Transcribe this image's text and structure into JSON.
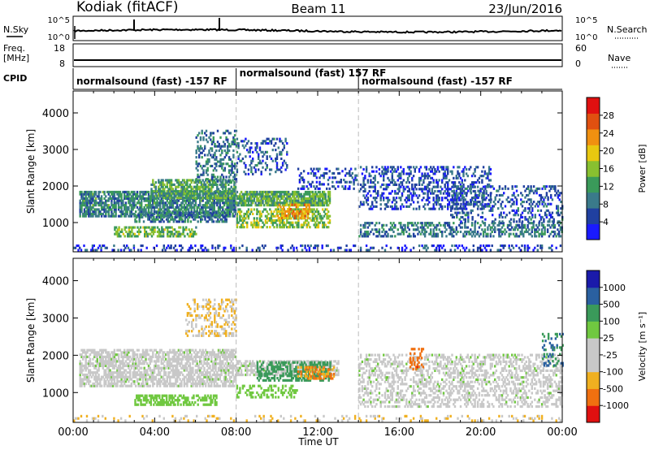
{
  "header": {
    "radar": "Kodiak (fitACF)",
    "beam": "Beam 11",
    "date": "23/Jun/2016"
  },
  "noise_panel": {
    "left_label": "N.Sky",
    "right_label": "N.Search",
    "left_ticks": [
      "10^5",
      "10^0"
    ],
    "right_ticks": [
      "10^5",
      "10^0"
    ]
  },
  "freq_panel": {
    "left_label_1": "Freq.",
    "left_label_2": "[MHz]",
    "right_label": "Nave",
    "left_ticks": [
      "18",
      "8"
    ],
    "right_ticks": [
      "60",
      "0"
    ]
  },
  "cpid": {
    "label": "CPID",
    "segments": [
      {
        "text": "normalsound (fast) -157 RF",
        "start_hour": 0.0
      },
      {
        "text": "normalsound (fast) 157 RF",
        "start_hour": 8.0
      },
      {
        "text": "normalsound (fast) -157 RF",
        "start_hour": 14.0
      }
    ]
  },
  "colors": {
    "power": [
      "#1a1aff",
      "#2040a0",
      "#3a7a8a",
      "#3a9a5a",
      "#88c030",
      "#e8c810",
      "#f09010",
      "#e05010",
      "#e01010"
    ],
    "velocity": [
      "#e01010",
      "#f07010",
      "#f0b020",
      "#c8c8c8",
      "#c8c8c8",
      "#70c840",
      "#3a9a5a",
      "#2a60a0",
      "#1a1aaa"
    ]
  },
  "chart_data": [
    {
      "type": "heatmap",
      "title": "",
      "xlabel": "Time UT",
      "ylabel": "Slant Range [km]",
      "xlim": [
        0,
        24
      ],
      "ylim": [
        200,
        4600
      ],
      "x_ticks": [
        "00:00",
        "04:00",
        "08:00",
        "12:00",
        "16:00",
        "20:00",
        "00:00"
      ],
      "y_ticks": [
        1000,
        2000,
        3000,
        4000
      ],
      "colorbar_label": "Power [dB]",
      "colorbar_ticks": [
        "28",
        "24",
        "20",
        "16",
        "12",
        "8",
        "4"
      ],
      "cell_hours": 0.07,
      "cell_km": 60,
      "regions": [
        {
          "t0": 0.3,
          "t1": 8.0,
          "r0": 1150,
          "r1": 1850,
          "v": 11,
          "dens": 0.75
        },
        {
          "t0": 3.8,
          "t1": 8.0,
          "r0": 1650,
          "r1": 2150,
          "v": 13,
          "dens": 0.7
        },
        {
          "t0": 8.0,
          "t1": 12.6,
          "r0": 1450,
          "r1": 1850,
          "v": 14,
          "dens": 0.8
        },
        {
          "t0": 8.0,
          "t1": 12.6,
          "r0": 850,
          "r1": 1350,
          "v": 16,
          "dens": 0.55
        },
        {
          "t0": 10.0,
          "t1": 11.6,
          "r0": 1100,
          "r1": 1500,
          "v": 22,
          "dens": 0.5
        },
        {
          "t0": 3.0,
          "t1": 7.5,
          "r0": 1000,
          "r1": 1250,
          "v": 10,
          "dens": 0.55
        },
        {
          "t0": 2.0,
          "t1": 6.0,
          "r0": 600,
          "r1": 850,
          "v": 15,
          "dens": 0.55
        },
        {
          "t0": 6.0,
          "t1": 8.0,
          "r0": 2100,
          "r1": 3500,
          "v": 10,
          "dens": 0.35
        },
        {
          "t0": 8.0,
          "t1": 10.5,
          "r0": 2300,
          "r1": 3300,
          "v": 8,
          "dens": 0.25
        },
        {
          "t0": 11.0,
          "t1": 14.0,
          "r0": 1900,
          "r1": 2500,
          "v": 7,
          "dens": 0.3
        },
        {
          "t0": 14.0,
          "t1": 20.5,
          "r0": 1350,
          "r1": 2500,
          "v": 7,
          "dens": 0.33
        },
        {
          "t0": 14.0,
          "t1": 24.0,
          "r0": 600,
          "r1": 1000,
          "v": 10,
          "dens": 0.45
        },
        {
          "t0": 18.5,
          "t1": 24.0,
          "r0": 1000,
          "r1": 2000,
          "v": 8,
          "dens": 0.3
        },
        {
          "t0": 0.0,
          "t1": 24.0,
          "r0": 220,
          "r1": 400,
          "v": 6,
          "dens": 0.25
        }
      ]
    },
    {
      "type": "heatmap",
      "title": "",
      "xlabel": "Time UT",
      "ylabel": "Slant Range [km]",
      "xlim": [
        0,
        24
      ],
      "ylim": [
        200,
        4600
      ],
      "x_ticks": [
        "00:00",
        "04:00",
        "08:00",
        "12:00",
        "16:00",
        "20:00",
        "00:00"
      ],
      "y_ticks": [
        1000,
        2000,
        3000,
        4000
      ],
      "colorbar_label": "Velocity [m s⁻¹]",
      "colorbar_ticks": [
        "1000",
        "500",
        "100",
        "25",
        "-25",
        "-100",
        "-500",
        "-1000"
      ],
      "cell_hours": 0.07,
      "cell_km": 60,
      "regions": [
        {
          "t0": 0.3,
          "t1": 8.0,
          "r0": 1150,
          "r1": 2150,
          "v": 0,
          "dens": 0.65
        },
        {
          "t0": 8.0,
          "t1": 13.0,
          "r0": 1450,
          "r1": 1850,
          "v": 0,
          "dens": 0.6
        },
        {
          "t0": 9.0,
          "t1": 12.6,
          "r0": 1300,
          "r1": 1800,
          "v": 150,
          "dens": 0.5
        },
        {
          "t0": 11.0,
          "t1": 12.8,
          "r0": 1350,
          "r1": 1700,
          "v": -500,
          "dens": 0.45
        },
        {
          "t0": 3.0,
          "t1": 7.0,
          "r0": 650,
          "r1": 950,
          "v": 60,
          "dens": 0.55
        },
        {
          "t0": 8.0,
          "t1": 11.0,
          "r0": 850,
          "r1": 1200,
          "v": 60,
          "dens": 0.4
        },
        {
          "t0": 5.5,
          "t1": 8.0,
          "r0": 2500,
          "r1": 3500,
          "v": -100,
          "dens": 0.3
        },
        {
          "t0": 14.0,
          "t1": 24.0,
          "r0": 600,
          "r1": 2000,
          "v": 0,
          "dens": 0.4
        },
        {
          "t0": 16.5,
          "t1": 17.2,
          "r0": 1600,
          "r1": 2200,
          "v": -800,
          "dens": 0.35
        },
        {
          "t0": 23.0,
          "t1": 24.0,
          "r0": 1700,
          "r1": 2600,
          "v": 500,
          "dens": 0.25
        },
        {
          "t0": 0.0,
          "t1": 24.0,
          "r0": 220,
          "r1": 380,
          "v": -100,
          "dens": 0.15
        }
      ]
    }
  ]
}
